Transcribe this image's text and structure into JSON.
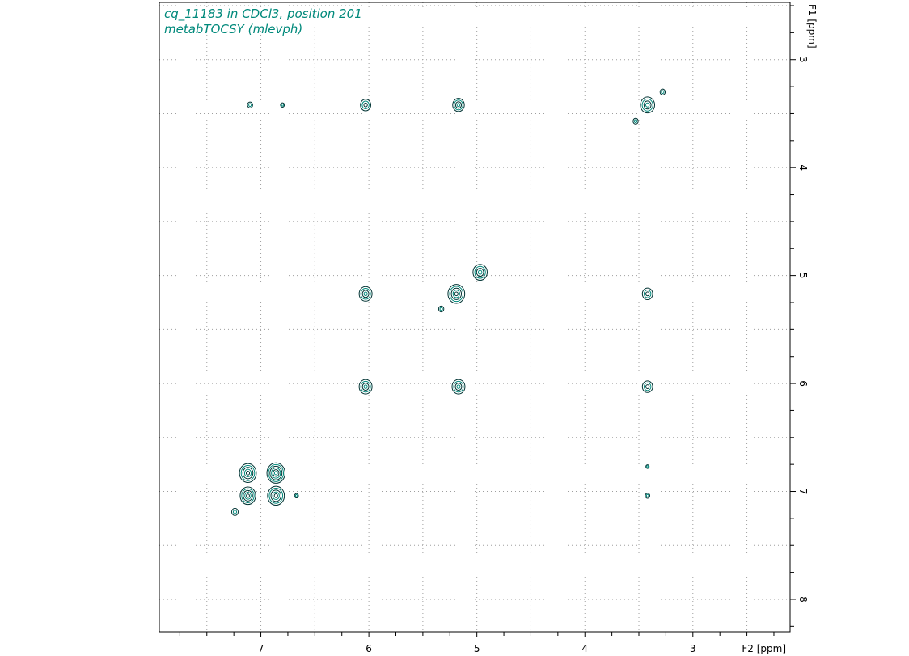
{
  "title_lines": [
    "cq_11183 in CDCl3, position 201",
    "metabTOCSY (mlevph)"
  ],
  "colors": {
    "title": "#00897b",
    "contour_dark": "#003333",
    "contour_light": "#00897b",
    "grid": "#9e9e9e"
  },
  "chart_data": {
    "type": "contour",
    "xlabel": "F2 [ppm]",
    "ylabel": "F1 [ppm]",
    "x_range": [
      7.94,
      2.1
    ],
    "y_range": [
      2.47,
      8.3
    ],
    "x_reversed": true,
    "y_reversed": true,
    "x_ticks": [
      7,
      6,
      5,
      4,
      3
    ],
    "y_ticks": [
      3,
      4,
      5,
      6,
      7,
      8
    ],
    "grid": true,
    "peaks": [
      {
        "x": 7.1,
        "y": 3.42,
        "size": 0.4
      },
      {
        "x": 6.8,
        "y": 3.42,
        "size": 0.3
      },
      {
        "x": 6.03,
        "y": 3.42,
        "size": 0.8
      },
      {
        "x": 5.17,
        "y": 3.42,
        "size": 0.9
      },
      {
        "x": 3.42,
        "y": 3.42,
        "size": 1.1
      },
      {
        "x": 3.28,
        "y": 3.3,
        "size": 0.4
      },
      {
        "x": 3.53,
        "y": 3.57,
        "size": 0.4
      },
      {
        "x": 4.97,
        "y": 4.97,
        "size": 1.1
      },
      {
        "x": 5.19,
        "y": 5.17,
        "size": 1.3
      },
      {
        "x": 5.33,
        "y": 5.31,
        "size": 0.4
      },
      {
        "x": 6.03,
        "y": 5.17,
        "size": 1.0
      },
      {
        "x": 3.42,
        "y": 5.17,
        "size": 0.8
      },
      {
        "x": 6.03,
        "y": 6.03,
        "size": 1.0
      },
      {
        "x": 5.17,
        "y": 6.03,
        "size": 1.0
      },
      {
        "x": 3.42,
        "y": 6.03,
        "size": 0.8
      },
      {
        "x": 7.12,
        "y": 6.83,
        "size": 1.3
      },
      {
        "x": 6.86,
        "y": 6.83,
        "size": 1.4
      },
      {
        "x": 7.12,
        "y": 7.04,
        "size": 1.2
      },
      {
        "x": 6.86,
        "y": 7.04,
        "size": 1.3
      },
      {
        "x": 6.67,
        "y": 7.04,
        "size": 0.3
      },
      {
        "x": 7.24,
        "y": 7.19,
        "size": 0.5
      },
      {
        "x": 3.42,
        "y": 6.77,
        "size": 0.25
      },
      {
        "x": 3.42,
        "y": 7.04,
        "size": 0.35
      }
    ]
  }
}
